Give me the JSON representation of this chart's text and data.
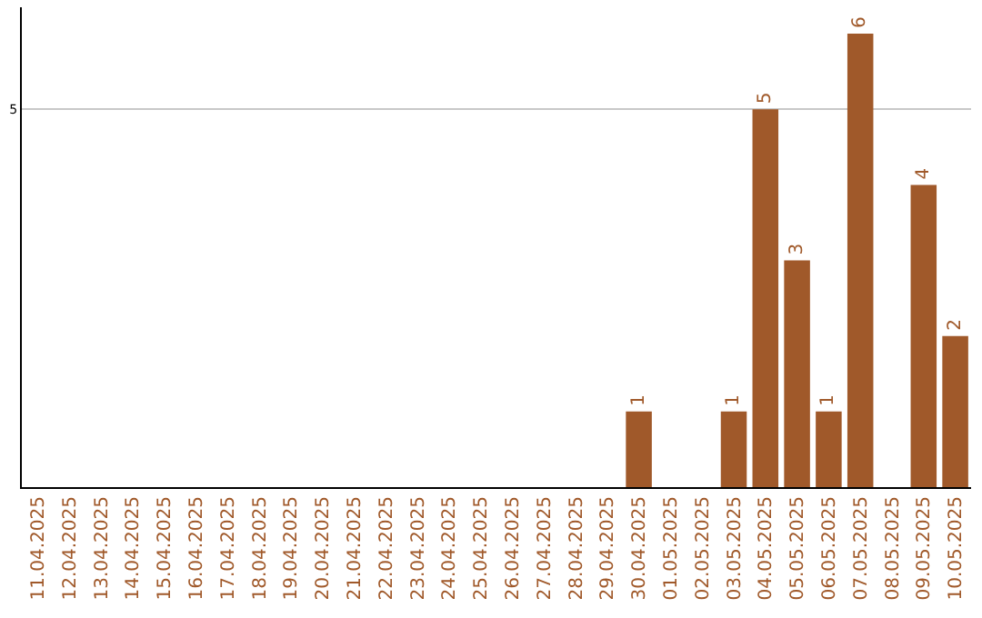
{
  "chart_data": {
    "type": "bar",
    "categories": [
      "11.04.2025",
      "12.04.2025",
      "13.04.2025",
      "14.04.2025",
      "15.04.2025",
      "16.04.2025",
      "17.04.2025",
      "18.04.2025",
      "19.04.2025",
      "20.04.2025",
      "21.04.2025",
      "22.04.2025",
      "23.04.2025",
      "24.04.2025",
      "25.04.2025",
      "26.04.2025",
      "27.04.2025",
      "28.04.2025",
      "29.04.2025",
      "30.04.2025",
      "01.05.2025",
      "02.05.2025",
      "03.05.2025",
      "04.05.2025",
      "05.05.2025",
      "06.05.2025",
      "07.05.2025",
      "08.05.2025",
      "09.05.2025",
      "10.05.2025"
    ],
    "series": [
      {
        "color": "#a0592a",
        "values": [
          null,
          null,
          null,
          null,
          null,
          null,
          null,
          null,
          null,
          null,
          null,
          null,
          null,
          null,
          null,
          null,
          null,
          null,
          null,
          1,
          null,
          null,
          1,
          5,
          3,
          1,
          6,
          null,
          4,
          2
        ],
        "value_labels": [
          null,
          null,
          null,
          null,
          null,
          null,
          null,
          null,
          null,
          null,
          null,
          null,
          null,
          null,
          null,
          null,
          null,
          null,
          null,
          "1",
          null,
          null,
          "1",
          "5",
          "3",
          "1",
          "6",
          null,
          "4",
          "2"
        ]
      }
    ],
    "ylim": [
      0,
      6.35
    ],
    "yticks": [
      5
    ],
    "grid": "y"
  }
}
